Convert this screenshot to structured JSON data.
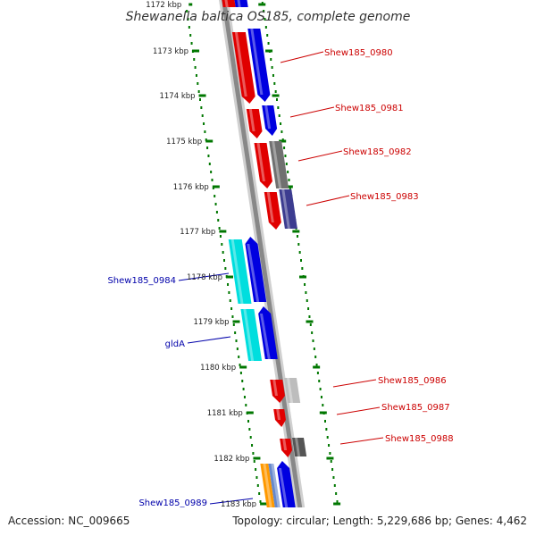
{
  "title": "Shewanella baltica OS185, complete genome",
  "colors": {
    "forward": "#e00000",
    "reverse": "#0000e0",
    "cyan": "#00dede",
    "gray": "#707070",
    "lightgray": "#bdbdbd",
    "darkgray": "#555555",
    "slate": "#3c3c90",
    "orange": "#ff9900",
    "ruler": "#007700",
    "backbone": "#8a8a8a"
  },
  "ruler_labels": [
    "1172 kbp",
    "1173 kbp",
    "1174 kbp",
    "1175 kbp",
    "1176 kbp",
    "1177 kbp",
    "1178 kbp",
    "1179 kbp",
    "1180 kbp",
    "1181 kbp",
    "1182 kbp",
    "1183 kbp"
  ],
  "gene_labels": [
    {
      "text": "Shew185_0980",
      "color": "red"
    },
    {
      "text": "Shew185_0981",
      "color": "red"
    },
    {
      "text": "Shew185_0982",
      "color": "red"
    },
    {
      "text": "Shew185_0983",
      "color": "red"
    },
    {
      "text": "Shew185_0984",
      "color": "blue"
    },
    {
      "text": "gldA",
      "color": "blue"
    },
    {
      "text": "Shew185_0986",
      "color": "red"
    },
    {
      "text": "Shew185_0987",
      "color": "red"
    },
    {
      "text": "Shew185_0988",
      "color": "red"
    },
    {
      "text": "Shew185_0989",
      "color": "blue"
    }
  ],
  "footer": {
    "accession": "Accession: NC_009665",
    "summary": "Topology: circular; Length: 5,229,686 bp; Genes: 4,462"
  }
}
